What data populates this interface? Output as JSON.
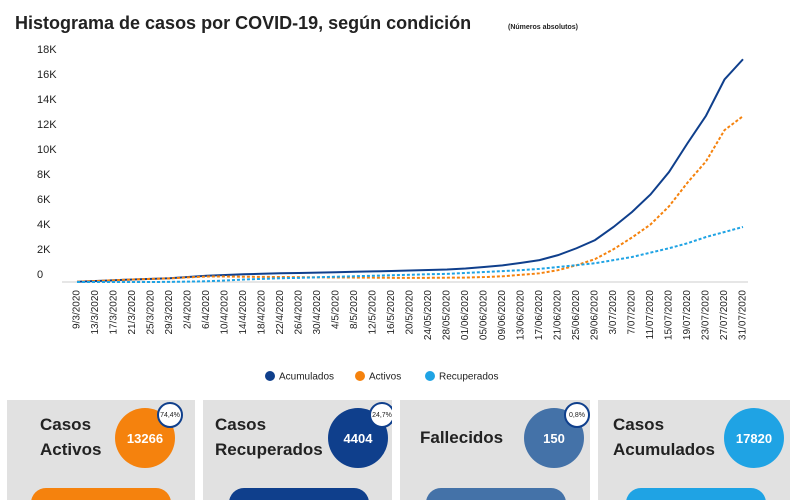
{
  "chart_data": {
    "type": "line",
    "title": "Histograma de casos por COVID-19, según condición",
    "subtitle": "(Números absolutos)",
    "x": [
      "9/3/2020",
      "13/3/2020",
      "17/3/2020",
      "21/3/2020",
      "25/3/2020",
      "29/3/2020",
      "2/4/2020",
      "6/4/2020",
      "10/4/2020",
      "14/4/2020",
      "18/4/2020",
      "22/4/2020",
      "26/4/2020",
      "30/4/2020",
      "4/5/2020",
      "8/5/2020",
      "12/5/2020",
      "16/5/2020",
      "20/5/2020",
      "24/05/2020",
      "28/05/2020",
      "01/06/2020",
      "05/06/2020",
      "09/06/2020",
      "13/06/2020",
      "17/06/2020",
      "21/06/2020",
      "25/06/2020",
      "29/06/2020",
      "3/07/2020",
      "7/07/2020",
      "11/07/2020",
      "15/07/2020",
      "19/07/2020",
      "23/07/2020",
      "27/07/2020",
      "31/07/2020"
    ],
    "series": [
      {
        "name": "Acumulados",
        "color": "#0f3f8c",
        "dashed": false,
        "values": [
          20,
          80,
          140,
          200,
          250,
          300,
          400,
          500,
          560,
          620,
          660,
          700,
          720,
          750,
          780,
          820,
          850,
          880,
          920,
          960,
          1000,
          1080,
          1200,
          1330,
          1530,
          1750,
          2150,
          2700,
          3350,
          4400,
          5600,
          7000,
          8800,
          11100,
          13300,
          16200,
          17820
        ]
      },
      {
        "name": "Activos",
        "color": "#f5820d",
        "dashed": true,
        "values": [
          20,
          80,
          140,
          200,
          250,
          290,
          370,
          440,
          440,
          420,
          410,
          400,
          390,
          370,
          360,
          355,
          345,
          335,
          335,
          335,
          345,
          355,
          395,
          455,
          575,
          695,
          945,
          1340,
          1830,
          2620,
          3560,
          4600,
          6050,
          7950,
          9650,
          12150,
          13266
        ]
      },
      {
        "name": "Recuperados",
        "color": "#1fa3e4",
        "dashed": true,
        "values": [
          0,
          0,
          0,
          0,
          0,
          10,
          30,
          60,
          120,
          200,
          250,
          300,
          330,
          380,
          420,
          460,
          500,
          540,
          580,
          620,
          650,
          720,
          800,
          870,
          950,
          1050,
          1200,
          1350,
          1500,
          1750,
          2000,
          2350,
          2700,
          3100,
          3600,
          4000,
          4404
        ]
      }
    ],
    "ylim": [
      0,
      18000
    ],
    "yticks": [
      0,
      {
        "value": 2000,
        "label": "2K"
      },
      {
        "value": 4000,
        "label": "4K"
      },
      {
        "value": 6000,
        "label": "6K"
      },
      {
        "value": 8000,
        "label": "8K"
      },
      {
        "value": 10000,
        "label": "10K"
      },
      {
        "value": 12000,
        "label": "12K"
      },
      {
        "value": 14000,
        "label": "14K"
      },
      {
        "value": 16000,
        "label": "16K"
      },
      {
        "value": 18000,
        "label": "18K"
      }
    ],
    "grid": false,
    "legend": "bottom"
  },
  "cards": [
    {
      "title": "Casos Activos",
      "value": 13266,
      "percent": "74,4%"
    },
    {
      "title": "Casos Recuperados",
      "value": 4404,
      "percent": "24,7%"
    },
    {
      "title": "Fallecidos",
      "value": 150,
      "percent": "0,8%"
    },
    {
      "title": "Casos Acumulados",
      "value": 17820
    }
  ]
}
